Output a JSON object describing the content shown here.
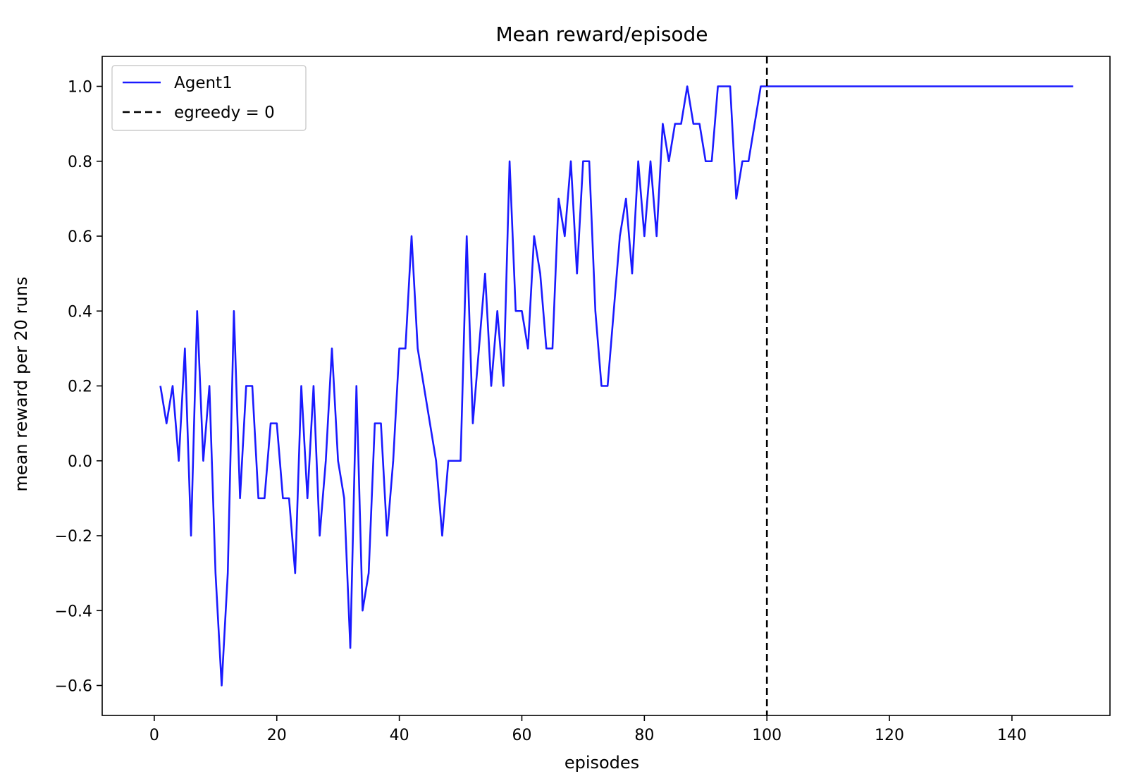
{
  "chart_data": {
    "type": "line",
    "title": "Mean reward/episode",
    "xlabel": "episodes",
    "ylabel": "mean reward per 20 runs",
    "xlim": [
      -8.5,
      156
    ],
    "ylim": [
      -0.68,
      1.08
    ],
    "xticks": [
      0,
      20,
      40,
      60,
      80,
      100,
      120,
      140
    ],
    "yticks": [
      -0.6,
      -0.4,
      -0.2,
      0.0,
      0.2,
      0.4,
      0.6,
      0.8,
      1.0
    ],
    "xtick_labels": [
      "0",
      "20",
      "40",
      "60",
      "80",
      "100",
      "120",
      "140"
    ],
    "ytick_labels": [
      "−0.6",
      "−0.4",
      "−0.2",
      "0.0",
      "0.2",
      "0.4",
      "0.6",
      "0.8",
      "1.0"
    ],
    "grid": false,
    "legend": {
      "position": "top-left",
      "entries": [
        {
          "label": "Agent1",
          "style": "solid",
          "color": "#1a1aff"
        },
        {
          "label": "egreedy = 0",
          "style": "dashed",
          "color": "#000000"
        }
      ]
    },
    "series": [
      {
        "name": "Agent1",
        "color": "#1a1aff",
        "x": [
          1,
          2,
          3,
          4,
          5,
          6,
          7,
          8,
          9,
          10,
          11,
          12,
          13,
          14,
          15,
          16,
          17,
          18,
          19,
          20,
          21,
          22,
          23,
          24,
          25,
          26,
          27,
          28,
          29,
          30,
          31,
          32,
          33,
          34,
          35,
          36,
          37,
          38,
          39,
          40,
          41,
          42,
          43,
          44,
          45,
          46,
          47,
          48,
          49,
          50,
          51,
          52,
          53,
          54,
          55,
          56,
          57,
          58,
          59,
          60,
          61,
          62,
          63,
          64,
          65,
          66,
          67,
          68,
          69,
          70,
          71,
          72,
          73,
          74,
          75,
          76,
          77,
          78,
          79,
          80,
          81,
          82,
          83,
          84,
          85,
          86,
          87,
          88,
          89,
          90,
          91,
          92,
          93,
          94,
          95,
          96,
          97,
          98,
          99,
          100,
          150
        ],
        "y": [
          0.2,
          0.1,
          0.2,
          0.0,
          0.3,
          -0.2,
          0.4,
          0.0,
          0.2,
          -0.3,
          -0.6,
          -0.3,
          0.4,
          -0.1,
          0.2,
          0.2,
          -0.1,
          -0.1,
          0.1,
          0.1,
          -0.1,
          -0.1,
          -0.3,
          0.2,
          -0.1,
          0.2,
          -0.2,
          0.0,
          0.3,
          0.0,
          -0.1,
          -0.5,
          0.2,
          -0.4,
          -0.3,
          0.1,
          0.1,
          -0.2,
          0.0,
          0.3,
          0.3,
          0.6,
          0.3,
          0.2,
          0.1,
          0.0,
          -0.2,
          0.0,
          0.0,
          0.0,
          0.6,
          0.1,
          0.3,
          0.5,
          0.2,
          0.4,
          0.2,
          0.8,
          0.4,
          0.4,
          0.3,
          0.6,
          0.5,
          0.3,
          0.3,
          0.7,
          0.6,
          0.8,
          0.5,
          0.8,
          0.8,
          0.4,
          0.2,
          0.2,
          0.4,
          0.6,
          0.7,
          0.5,
          0.8,
          0.6,
          0.8,
          0.6,
          0.9,
          0.8,
          0.9,
          0.9,
          1.0,
          0.9,
          0.9,
          0.8,
          0.8,
          1.0,
          1.0,
          1.0,
          0.7,
          0.8,
          0.8,
          0.9,
          1.0,
          1.0,
          1.0
        ]
      }
    ],
    "annotations": [
      {
        "type": "vline",
        "x": 100,
        "style": "dashed",
        "color": "#000000",
        "label": "egreedy = 0"
      }
    ]
  }
}
